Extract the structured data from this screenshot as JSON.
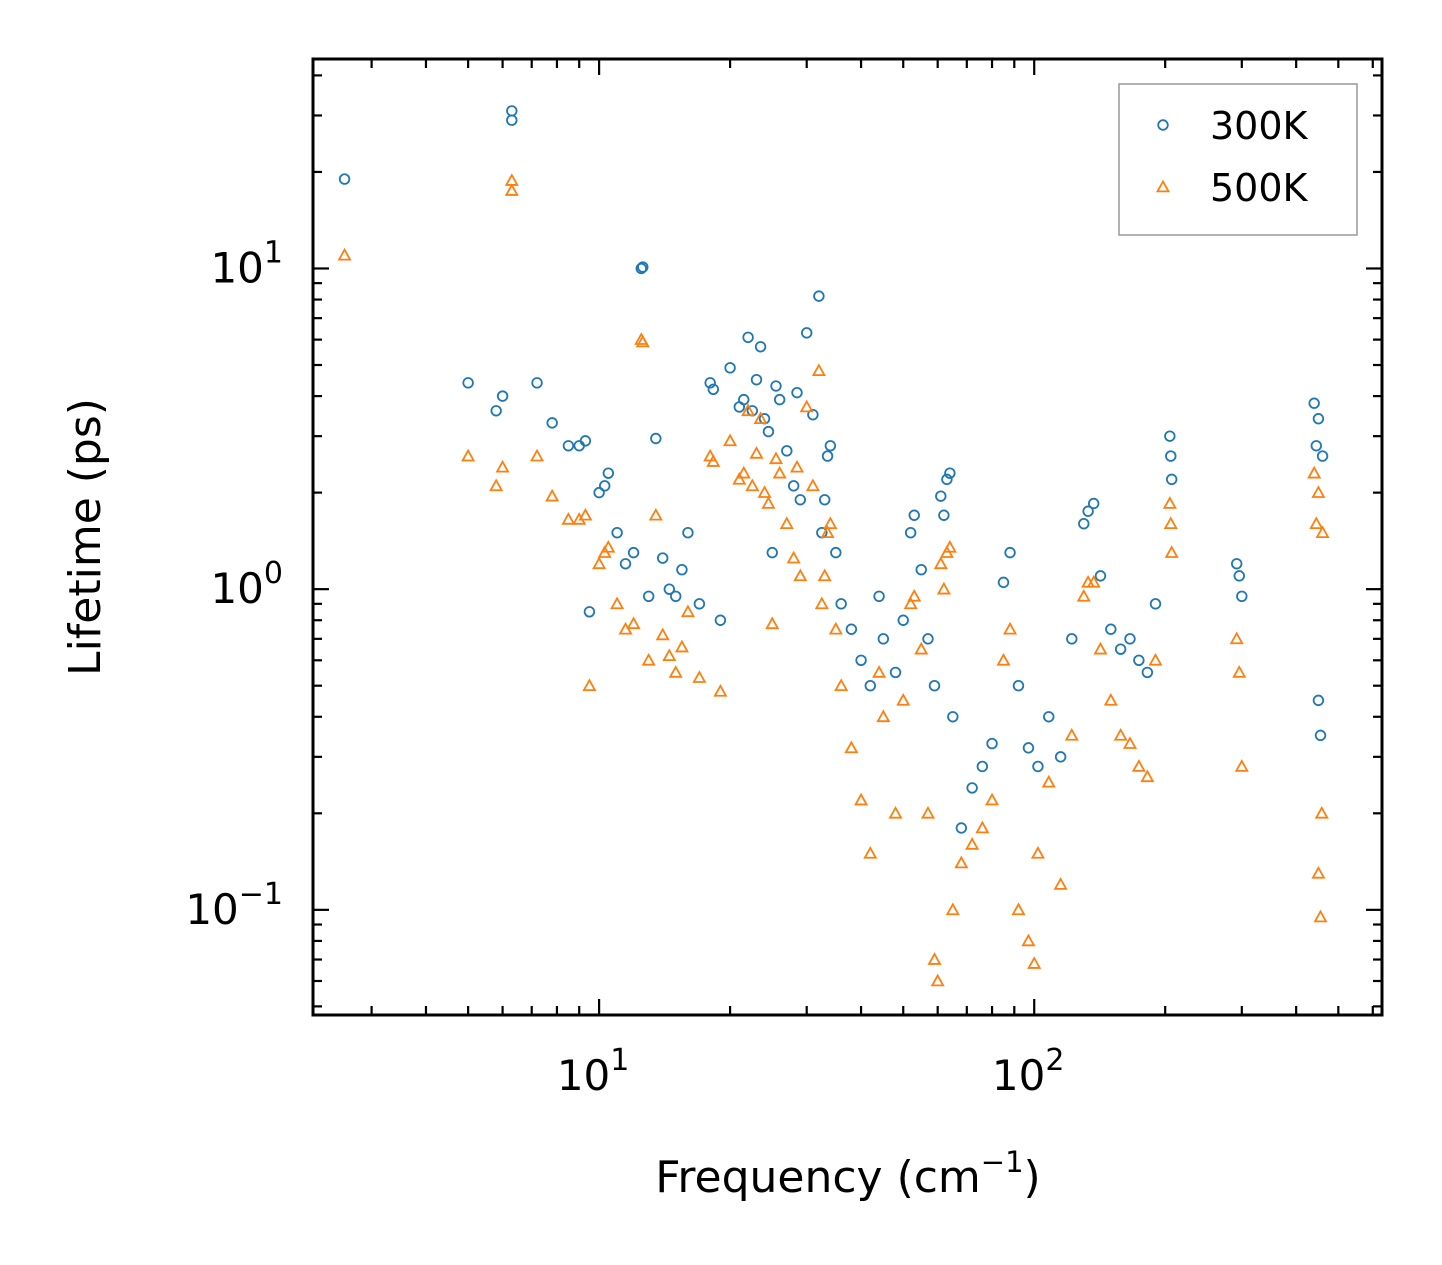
{
  "chart_data": {
    "type": "scatter",
    "title": "",
    "xlabel": "Frequency (cm",
    "xlabel_sup": "−1",
    "xlabel_tail": ")",
    "ylabel": "Lifetime (ps)",
    "xscale": "log",
    "yscale": "log",
    "xlim": [
      2.2,
      630
    ],
    "ylim": [
      0.047,
      45
    ],
    "x_ticks": [
      {
        "value": 10,
        "base": "10",
        "exp": "1"
      },
      {
        "value": 100,
        "base": "10",
        "exp": "2"
      }
    ],
    "y_ticks": [
      {
        "value": 0.1,
        "base": "10",
        "exp": "−1"
      },
      {
        "value": 1,
        "base": "10",
        "exp": "0"
      },
      {
        "value": 10,
        "base": "10",
        "exp": "1"
      }
    ],
    "legend_position": "top-right",
    "series": [
      {
        "name": "300K",
        "marker": "circle",
        "color": "#1f77b4",
        "points": [
          [
            2.6,
            19.0
          ],
          [
            5.0,
            4.4
          ],
          [
            5.8,
            3.6
          ],
          [
            6.0,
            4.0
          ],
          [
            6.3,
            31.0
          ],
          [
            6.3,
            29.0
          ],
          [
            7.2,
            4.4
          ],
          [
            7.8,
            3.3
          ],
          [
            8.5,
            2.8
          ],
          [
            9.0,
            2.8
          ],
          [
            9.3,
            2.9
          ],
          [
            9.5,
            0.85
          ],
          [
            10.0,
            2.0
          ],
          [
            10.3,
            2.1
          ],
          [
            10.5,
            2.3
          ],
          [
            11.0,
            1.5
          ],
          [
            11.5,
            1.2
          ],
          [
            12.0,
            1.3
          ],
          [
            12.5,
            10.0
          ],
          [
            12.6,
            10.1
          ],
          [
            13.0,
            0.95
          ],
          [
            13.5,
            2.95
          ],
          [
            14.0,
            1.25
          ],
          [
            14.5,
            1.0
          ],
          [
            15.0,
            0.95
          ],
          [
            15.5,
            1.15
          ],
          [
            16.0,
            1.5
          ],
          [
            17.0,
            0.9
          ],
          [
            18.0,
            4.4
          ],
          [
            18.3,
            4.2
          ],
          [
            19.0,
            0.8
          ],
          [
            20.0,
            4.9
          ],
          [
            21.0,
            3.7
          ],
          [
            21.5,
            3.9
          ],
          [
            22.0,
            6.1
          ],
          [
            22.5,
            3.6
          ],
          [
            23.0,
            4.5
          ],
          [
            23.5,
            5.7
          ],
          [
            24.0,
            3.4
          ],
          [
            24.5,
            3.1
          ],
          [
            25.0,
            1.3
          ],
          [
            25.5,
            4.3
          ],
          [
            26.0,
            3.9
          ],
          [
            27.0,
            2.7
          ],
          [
            28.0,
            2.1
          ],
          [
            28.5,
            4.1
          ],
          [
            29.0,
            1.9
          ],
          [
            30.0,
            6.3
          ],
          [
            31.0,
            3.5
          ],
          [
            32.0,
            8.2
          ],
          [
            32.5,
            1.5
          ],
          [
            33.0,
            1.9
          ],
          [
            33.5,
            2.6
          ],
          [
            34.0,
            2.8
          ],
          [
            35.0,
            1.3
          ],
          [
            36.0,
            0.9
          ],
          [
            38.0,
            0.75
          ],
          [
            40.0,
            0.6
          ],
          [
            42.0,
            0.5
          ],
          [
            44.0,
            0.95
          ],
          [
            45.0,
            0.7
          ],
          [
            48.0,
            0.55
          ],
          [
            50.0,
            0.8
          ],
          [
            52.0,
            1.5
          ],
          [
            53.0,
            1.7
          ],
          [
            55.0,
            1.15
          ],
          [
            57.0,
            0.7
          ],
          [
            59.0,
            0.5
          ],
          [
            61.0,
            1.95
          ],
          [
            62.0,
            1.7
          ],
          [
            63.0,
            2.2
          ],
          [
            64.0,
            2.3
          ],
          [
            65.0,
            0.4
          ],
          [
            68.0,
            0.18
          ],
          [
            72.0,
            0.24
          ],
          [
            76.0,
            0.28
          ],
          [
            80.0,
            0.33
          ],
          [
            85.0,
            1.05
          ],
          [
            88.0,
            1.3
          ],
          [
            92.0,
            0.5
          ],
          [
            97.0,
            0.32
          ],
          [
            102.0,
            0.28
          ],
          [
            108.0,
            0.4
          ],
          [
            115.0,
            0.3
          ],
          [
            122.0,
            0.7
          ],
          [
            130.0,
            1.6
          ],
          [
            133.0,
            1.75
          ],
          [
            137.0,
            1.85
          ],
          [
            142.0,
            1.1
          ],
          [
            150.0,
            0.75
          ],
          [
            158.0,
            0.65
          ],
          [
            166.0,
            0.7
          ],
          [
            174.0,
            0.6
          ],
          [
            182.0,
            0.55
          ],
          [
            190.0,
            0.9
          ],
          [
            205.0,
            3.0
          ],
          [
            206.0,
            2.6
          ],
          [
            207.0,
            2.2
          ],
          [
            292.0,
            1.2
          ],
          [
            296.0,
            1.1
          ],
          [
            300.0,
            0.95
          ],
          [
            440.0,
            3.8
          ],
          [
            450.0,
            3.4
          ],
          [
            460.0,
            2.6
          ],
          [
            445.0,
            2.8
          ],
          [
            455.0,
            0.35
          ],
          [
            450.0,
            0.45
          ]
        ]
      },
      {
        "name": "500K",
        "marker": "triangle",
        "color": "#ff7f0e",
        "points": [
          [
            2.6,
            11.0
          ],
          [
            5.0,
            2.6
          ],
          [
            5.8,
            2.1
          ],
          [
            6.0,
            2.4
          ],
          [
            6.3,
            18.8
          ],
          [
            6.3,
            17.5
          ],
          [
            7.2,
            2.6
          ],
          [
            7.8,
            1.95
          ],
          [
            8.5,
            1.65
          ],
          [
            9.0,
            1.65
          ],
          [
            9.3,
            1.7
          ],
          [
            9.5,
            0.5
          ],
          [
            10.0,
            1.2
          ],
          [
            10.3,
            1.3
          ],
          [
            10.5,
            1.35
          ],
          [
            11.0,
            0.9
          ],
          [
            11.5,
            0.75
          ],
          [
            12.0,
            0.78
          ],
          [
            12.5,
            6.0
          ],
          [
            12.6,
            5.9
          ],
          [
            13.0,
            0.6
          ],
          [
            13.5,
            1.7
          ],
          [
            14.0,
            0.72
          ],
          [
            14.5,
            0.62
          ],
          [
            15.0,
            0.55
          ],
          [
            15.5,
            0.66
          ],
          [
            16.0,
            0.85
          ],
          [
            17.0,
            0.53
          ],
          [
            18.0,
            2.6
          ],
          [
            18.3,
            2.5
          ],
          [
            19.0,
            0.48
          ],
          [
            20.0,
            2.9
          ],
          [
            21.0,
            2.2
          ],
          [
            21.5,
            2.3
          ],
          [
            22.0,
            3.6
          ],
          [
            22.5,
            2.1
          ],
          [
            23.0,
            2.65
          ],
          [
            23.5,
            3.4
          ],
          [
            24.0,
            2.0
          ],
          [
            24.5,
            1.85
          ],
          [
            25.0,
            0.78
          ],
          [
            25.5,
            2.55
          ],
          [
            26.0,
            2.3
          ],
          [
            27.0,
            1.6
          ],
          [
            28.0,
            1.25
          ],
          [
            28.5,
            2.4
          ],
          [
            29.0,
            1.1
          ],
          [
            30.0,
            3.7
          ],
          [
            31.0,
            2.1
          ],
          [
            32.0,
            4.8
          ],
          [
            32.5,
            0.9
          ],
          [
            33.0,
            1.1
          ],
          [
            33.5,
            1.5
          ],
          [
            34.0,
            1.6
          ],
          [
            35.0,
            0.75
          ],
          [
            36.0,
            0.5
          ],
          [
            38.0,
            0.32
          ],
          [
            40.0,
            0.22
          ],
          [
            42.0,
            0.15
          ],
          [
            44.0,
            0.55
          ],
          [
            45.0,
            0.4
          ],
          [
            48.0,
            0.2
          ],
          [
            50.0,
            0.45
          ],
          [
            52.0,
            0.9
          ],
          [
            53.0,
            0.95
          ],
          [
            55.0,
            0.65
          ],
          [
            57.0,
            0.2
          ],
          [
            59.0,
            0.07
          ],
          [
            60.0,
            0.06
          ],
          [
            61.0,
            1.2
          ],
          [
            62.0,
            1.0
          ],
          [
            63.0,
            1.3
          ],
          [
            64.0,
            1.35
          ],
          [
            65.0,
            0.1
          ],
          [
            68.0,
            0.14
          ],
          [
            72.0,
            0.16
          ],
          [
            76.0,
            0.18
          ],
          [
            80.0,
            0.22
          ],
          [
            85.0,
            0.6
          ],
          [
            88.0,
            0.75
          ],
          [
            92.0,
            0.1
          ],
          [
            97.0,
            0.08
          ],
          [
            100.0,
            0.068
          ],
          [
            102.0,
            0.15
          ],
          [
            108.0,
            0.25
          ],
          [
            115.0,
            0.12
          ],
          [
            122.0,
            0.35
          ],
          [
            130.0,
            0.95
          ],
          [
            133.0,
            1.05
          ],
          [
            137.0,
            1.05
          ],
          [
            142.0,
            0.65
          ],
          [
            150.0,
            0.45
          ],
          [
            158.0,
            0.35
          ],
          [
            166.0,
            0.33
          ],
          [
            174.0,
            0.28
          ],
          [
            182.0,
            0.26
          ],
          [
            190.0,
            0.6
          ],
          [
            205.0,
            1.85
          ],
          [
            206.0,
            1.6
          ],
          [
            207.0,
            1.3
          ],
          [
            292.0,
            0.7
          ],
          [
            296.0,
            0.55
          ],
          [
            300.0,
            0.28
          ],
          [
            440.0,
            2.3
          ],
          [
            450.0,
            2.0
          ],
          [
            460.0,
            1.5
          ],
          [
            445.0,
            1.6
          ],
          [
            455.0,
            0.095
          ],
          [
            450.0,
            0.13
          ],
          [
            458.0,
            0.2
          ]
        ]
      }
    ]
  }
}
